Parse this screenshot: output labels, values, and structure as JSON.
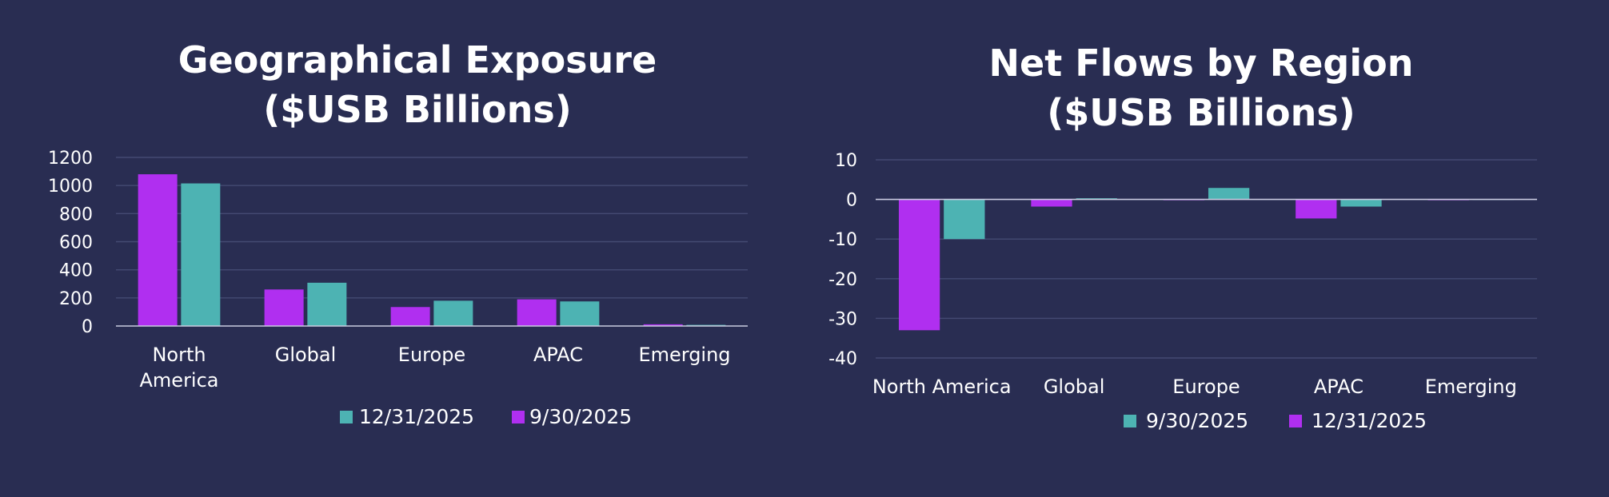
{
  "colors": {
    "background": "#292d52",
    "purple": "#b02ff0",
    "teal": "#4db3b3",
    "grid": "#444a72"
  },
  "chart_data": [
    {
      "type": "bar",
      "title_lines": [
        "Geographical Exposure",
        "($USB Billions)"
      ],
      "categories": [
        [
          "North",
          "America"
        ],
        [
          "Global"
        ],
        [
          "Europe"
        ],
        [
          "APAC"
        ],
        [
          "Emerging"
        ]
      ],
      "ylim": [
        0,
        1200
      ],
      "yticks": [
        0,
        200,
        400,
        600,
        800,
        1000,
        1200
      ],
      "grid": true,
      "legend_position": "bottom",
      "series": [
        {
          "name": "9/30/2025",
          "color": "#b02ff0",
          "values": [
            1080,
            260,
            135,
            190,
            12
          ]
        },
        {
          "name": "12/31/2025",
          "color": "#4db3b3",
          "values": [
            1015,
            308,
            180,
            175,
            8
          ]
        }
      ],
      "legend_order": [
        "12/31/2025",
        "9/30/2025"
      ]
    },
    {
      "type": "bar",
      "title_lines": [
        "Net Flows by Region",
        "($USB Billions)"
      ],
      "categories": [
        [
          "North America"
        ],
        [
          "Global"
        ],
        [
          "Europe"
        ],
        [
          "APAC"
        ],
        [
          "Emerging"
        ]
      ],
      "ylim": [
        -40,
        10
      ],
      "yticks": [
        10,
        0,
        -10,
        -20,
        -30,
        -40
      ],
      "grid": true,
      "legend_position": "bottom",
      "series": [
        {
          "name": "12/31/2025",
          "color": "#b02ff0",
          "values": [
            -33,
            -1.8,
            -0.2,
            -4.8,
            -0.2
          ]
        },
        {
          "name": "9/30/2025",
          "color": "#4db3b3",
          "values": [
            -10,
            0.3,
            2.9,
            -1.8,
            0.1
          ]
        }
      ],
      "legend_order": [
        "9/30/2025",
        "12/31/2025"
      ]
    }
  ]
}
